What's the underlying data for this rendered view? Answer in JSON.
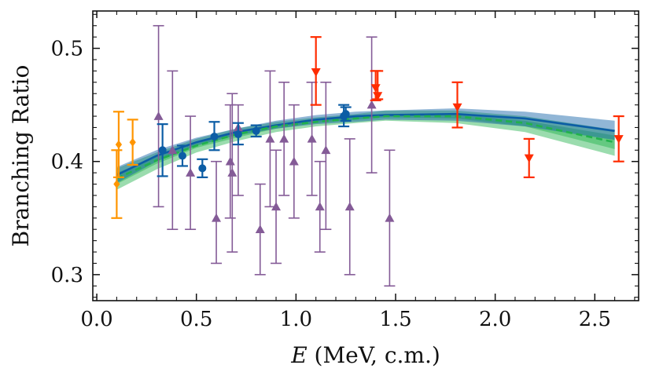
{
  "chart_data": {
    "type": "scatter",
    "title": "",
    "xlabel_var": "E",
    "xlabel_rest": " (MeV, c.m.)",
    "ylabel": "Branching Ratio",
    "xlim": [
      -0.02,
      2.72
    ],
    "ylim": [
      0.277,
      0.533
    ],
    "x_ticks": [
      0.0,
      0.5,
      1.0,
      1.5,
      2.0,
      2.5
    ],
    "x_tick_labels": [
      "0.0",
      "0.5",
      "1.0",
      "1.5",
      "2.0",
      "2.5"
    ],
    "y_ticks": [
      0.3,
      0.4,
      0.5
    ],
    "y_tick_labels": [
      "0.3",
      "0.4",
      "0.5"
    ],
    "grid": false,
    "bands": [
      {
        "name": "green-band",
        "color": "#21b14b",
        "x": [
          0.1,
          0.3,
          0.5,
          0.7,
          0.9,
          1.1,
          1.3,
          1.45,
          1.8,
          2.15,
          2.6
        ],
        "outer_low": [
          0.375,
          0.393,
          0.408,
          0.418,
          0.426,
          0.431,
          0.434,
          0.436,
          0.434,
          0.426,
          0.405
        ],
        "outer_high": [
          0.394,
          0.408,
          0.42,
          0.429,
          0.435,
          0.439,
          0.442,
          0.445,
          0.445,
          0.44,
          0.428
        ],
        "inner_low": [
          0.38,
          0.398,
          0.412,
          0.421,
          0.429,
          0.434,
          0.437,
          0.439,
          0.438,
          0.431,
          0.411
        ],
        "inner_high": [
          0.39,
          0.404,
          0.416,
          0.426,
          0.433,
          0.437,
          0.44,
          0.442,
          0.442,
          0.436,
          0.423
        ]
      },
      {
        "name": "blue-band",
        "color": "#0c5da5",
        "x": [
          0.1,
          0.3,
          0.5,
          0.7,
          0.9,
          1.1,
          1.3,
          1.45,
          1.8,
          2.15,
          2.6
        ],
        "low": [
          0.381,
          0.4,
          0.414,
          0.423,
          0.429,
          0.433,
          0.435,
          0.437,
          0.436,
          0.431,
          0.419
        ],
        "high": [
          0.395,
          0.41,
          0.421,
          0.429,
          0.436,
          0.441,
          0.444,
          0.445,
          0.447,
          0.444,
          0.436
        ]
      }
    ],
    "lines": [
      {
        "name": "blue-line",
        "color": "#0c5da5",
        "style": "solid",
        "x": [
          0.1,
          0.3,
          0.5,
          0.7,
          0.9,
          1.1,
          1.3,
          1.45,
          1.8,
          2.15,
          2.6
        ],
        "y": [
          0.388,
          0.405,
          0.417,
          0.426,
          0.432,
          0.437,
          0.44,
          0.441,
          0.442,
          0.438,
          0.427
        ]
      },
      {
        "name": "green-dashed-line",
        "color": "#21b14b",
        "style": "dashed",
        "x": [
          0.1,
          0.3,
          0.5,
          0.7,
          0.9,
          1.1,
          1.3,
          1.45,
          1.8,
          2.15,
          2.6
        ],
        "y": [
          0.385,
          0.401,
          0.414,
          0.424,
          0.431,
          0.435,
          0.438,
          0.44,
          0.44,
          0.434,
          0.417
        ]
      }
    ],
    "series": [
      {
        "name": "purple-triangles",
        "color": "#845b97",
        "marker": "triangle-up",
        "points": [
          {
            "x": 0.31,
            "y": 0.44,
            "lo": 0.36,
            "hi": 0.52
          },
          {
            "x": 0.38,
            "y": 0.41,
            "lo": 0.34,
            "hi": 0.48
          },
          {
            "x": 0.47,
            "y": 0.39,
            "lo": 0.34,
            "hi": 0.44
          },
          {
            "x": 0.6,
            "y": 0.35,
            "lo": 0.31,
            "hi": 0.4
          },
          {
            "x": 0.67,
            "y": 0.4,
            "lo": 0.35,
            "hi": 0.45
          },
          {
            "x": 0.68,
            "y": 0.39,
            "lo": 0.32,
            "hi": 0.46
          },
          {
            "x": 0.71,
            "y": 0.43,
            "lo": 0.37,
            "hi": 0.45
          },
          {
            "x": 0.82,
            "y": 0.34,
            "lo": 0.3,
            "hi": 0.38
          },
          {
            "x": 0.87,
            "y": 0.42,
            "lo": 0.36,
            "hi": 0.48
          },
          {
            "x": 0.9,
            "y": 0.36,
            "lo": 0.31,
            "hi": 0.41
          },
          {
            "x": 0.94,
            "y": 0.42,
            "lo": 0.37,
            "hi": 0.47
          },
          {
            "x": 0.99,
            "y": 0.4,
            "lo": 0.35,
            "hi": 0.45
          },
          {
            "x": 1.08,
            "y": 0.42,
            "lo": 0.37,
            "hi": 0.47
          },
          {
            "x": 1.12,
            "y": 0.36,
            "lo": 0.32,
            "hi": 0.4
          },
          {
            "x": 1.15,
            "y": 0.41,
            "lo": 0.34,
            "hi": 0.47
          },
          {
            "x": 1.27,
            "y": 0.36,
            "lo": 0.3,
            "hi": 0.42
          },
          {
            "x": 1.38,
            "y": 0.45,
            "lo": 0.39,
            "hi": 0.51
          },
          {
            "x": 1.47,
            "y": 0.35,
            "lo": 0.29,
            "hi": 0.41
          }
        ]
      },
      {
        "name": "orange-diamonds",
        "color": "#ff9500",
        "marker": "diamond",
        "points": [
          {
            "x": 0.1,
            "y": 0.38,
            "lo": 0.35,
            "hi": 0.41
          },
          {
            "x": 0.11,
            "y": 0.415,
            "lo": 0.386,
            "hi": 0.444
          },
          {
            "x": 0.18,
            "y": 0.417,
            "lo": 0.397,
            "hi": 0.437
          }
        ]
      },
      {
        "name": "blue-circles",
        "color": "#0c5da5",
        "marker": "circle",
        "points": [
          {
            "x": 0.33,
            "y": 0.41,
            "lo": 0.387,
            "hi": 0.433
          },
          {
            "x": 0.43,
            "y": 0.405,
            "lo": 0.396,
            "hi": 0.414
          },
          {
            "x": 0.53,
            "y": 0.394,
            "lo": 0.386,
            "hi": 0.402
          },
          {
            "x": 0.59,
            "y": 0.422,
            "lo": 0.41,
            "hi": 0.435
          },
          {
            "x": 0.71,
            "y": 0.424,
            "lo": 0.415,
            "hi": 0.434
          },
          {
            "x": 0.8,
            "y": 0.427,
            "lo": 0.422,
            "hi": 0.432
          },
          {
            "x": 1.24,
            "y": 0.44,
            "lo": 0.431,
            "hi": 0.45
          },
          {
            "x": 1.25,
            "y": 0.442,
            "lo": 0.436,
            "hi": 0.448
          }
        ]
      },
      {
        "name": "red-triangles-down",
        "color": "#ff2c00",
        "marker": "triangle-down",
        "points": [
          {
            "x": 1.1,
            "y": 0.479,
            "lo": 0.45,
            "hi": 0.51
          },
          {
            "x": 1.4,
            "y": 0.465,
            "lo": 0.454,
            "hi": 0.48
          },
          {
            "x": 1.41,
            "y": 0.458,
            "lo": 0.455,
            "hi": 0.48
          },
          {
            "x": 1.81,
            "y": 0.448,
            "lo": 0.43,
            "hi": 0.47
          },
          {
            "x": 2.17,
            "y": 0.403,
            "lo": 0.386,
            "hi": 0.42
          },
          {
            "x": 2.62,
            "y": 0.42,
            "lo": 0.4,
            "hi": 0.44
          }
        ]
      }
    ]
  }
}
